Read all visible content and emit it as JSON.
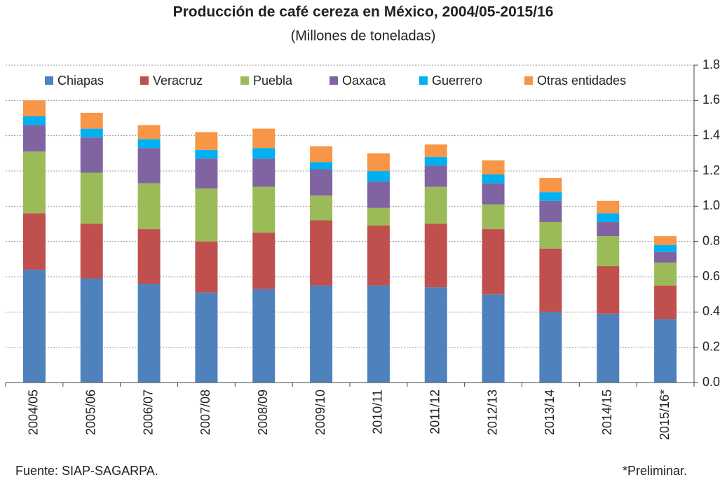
{
  "chart_data": {
    "type": "stacked_bar",
    "title": "Producción de café cereza en México, 2004/05-2015/16",
    "subtitle": "(Millones de toneladas)",
    "source": "Fuente: SIAP-SAGARPA.",
    "note": "*Preliminar.",
    "categories": [
      "2004/05",
      "2005/06",
      "2006/07",
      "2007/08",
      "2008/09",
      "2009/10",
      "2010/11",
      "2011/12",
      "2012/13",
      "2013/14",
      "2014/15",
      "2015/16*"
    ],
    "series": [
      {
        "name": "Chiapas",
        "color": "#4f81bd",
        "values": [
          0.64,
          0.59,
          0.56,
          0.51,
          0.53,
          0.55,
          0.55,
          0.54,
          0.5,
          0.4,
          0.39,
          0.36
        ]
      },
      {
        "name": "Veracruz",
        "color": "#c0504d",
        "values": [
          0.32,
          0.31,
          0.31,
          0.29,
          0.32,
          0.37,
          0.34,
          0.36,
          0.37,
          0.36,
          0.27,
          0.19
        ]
      },
      {
        "name": "Puebla",
        "color": "#9bbb59",
        "values": [
          0.35,
          0.29,
          0.26,
          0.3,
          0.26,
          0.14,
          0.1,
          0.21,
          0.14,
          0.15,
          0.17,
          0.13
        ]
      },
      {
        "name": "Oaxaca",
        "color": "#8064a2",
        "values": [
          0.15,
          0.2,
          0.2,
          0.17,
          0.16,
          0.15,
          0.15,
          0.12,
          0.12,
          0.12,
          0.08,
          0.06
        ]
      },
      {
        "name": "Guerrero",
        "color": "#00b0f0",
        "values": [
          0.05,
          0.05,
          0.05,
          0.05,
          0.06,
          0.04,
          0.06,
          0.05,
          0.05,
          0.05,
          0.05,
          0.04
        ]
      },
      {
        "name": "Otras entidades",
        "color": "#f79646",
        "values": [
          0.09,
          0.09,
          0.08,
          0.1,
          0.11,
          0.09,
          0.1,
          0.07,
          0.08,
          0.08,
          0.07,
          0.05
        ]
      }
    ],
    "ylim": [
      0,
      1.8
    ],
    "yticks": [
      {
        "value": 0,
        "label": "0.0"
      },
      0.2,
      0.4,
      0.6,
      0.8,
      {
        "value": 1,
        "label": "1.0"
      },
      1.2,
      1.4,
      1.6,
      1.8
    ],
    "grid": true,
    "legend": "top"
  }
}
